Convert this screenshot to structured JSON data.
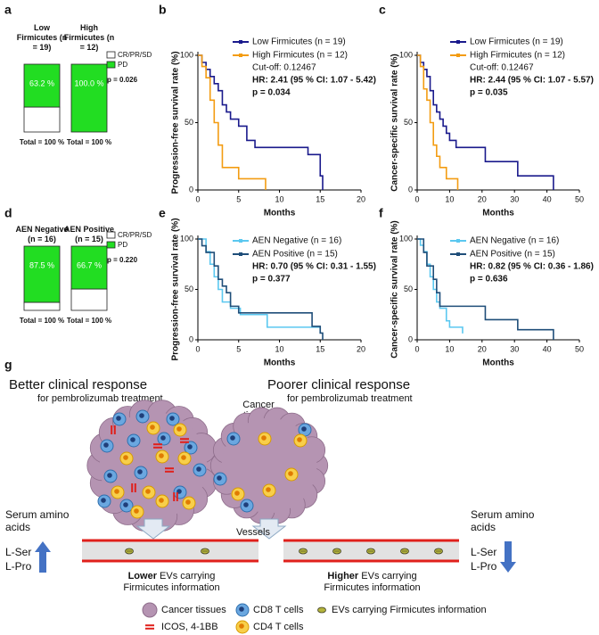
{
  "chart_data": [
    {
      "panel": "a",
      "type": "bar",
      "stacked": true,
      "categories": [
        "Low Firmicutes (n = 19)",
        "High Firmicutes (n = 12)"
      ],
      "series": [
        {
          "name": "CR/PR/SD",
          "color": "#ffffff",
          "values": [
            36.8,
            0
          ]
        },
        {
          "name": "PD",
          "color": "#22dd22",
          "values": [
            63.2,
            100.0
          ],
          "value_labels": [
            "63.2 %",
            "100.0 %"
          ]
        }
      ],
      "annotations": [
        "p = 0.026"
      ],
      "totals": [
        "Total = 100 %",
        "Total = 100 %"
      ]
    },
    {
      "panel": "b",
      "type": "line",
      "step": true,
      "xlabel": "Months",
      "ylabel": "Progression-free survival rate (%)",
      "xlim": [
        0,
        20
      ],
      "xticks": [
        0,
        5,
        10,
        15,
        20
      ],
      "ylim": [
        0,
        100
      ],
      "yticks": [
        0,
        50,
        100
      ],
      "series": [
        {
          "name": "Low Firmicutes (n = 19)",
          "color": "#1a1a8c",
          "x": [
            0,
            0.5,
            1,
            1.5,
            2,
            2.5,
            3,
            3.5,
            4,
            5,
            6,
            7,
            13.5,
            15,
            15.3
          ],
          "values": [
            100,
            94.7,
            89.5,
            84.2,
            78.9,
            73.7,
            63.2,
            57.9,
            52.6,
            47.4,
            36.8,
            31.6,
            26.3,
            10.5,
            0
          ]
        },
        {
          "name": "High Firmicutes (n = 12)",
          "color": "#f39c12",
          "x": [
            0,
            0.5,
            1,
            1.5,
            2,
            2.5,
            3,
            5,
            8.3
          ],
          "values": [
            100,
            91.7,
            83.3,
            66.7,
            50,
            33.3,
            16.7,
            8.3,
            0
          ]
        }
      ],
      "annotations": [
        "Cut-off: 0.12467",
        "HR: 2.41 (95 % CI: 1.07 - 5.42)",
        "p = 0.034"
      ]
    },
    {
      "panel": "c",
      "type": "line",
      "step": true,
      "xlabel": "Months",
      "ylabel": "Cancer-specific survival rate (%)",
      "xlim": [
        0,
        50
      ],
      "xticks": [
        0,
        10,
        20,
        30,
        40,
        50
      ],
      "ylim": [
        0,
        100
      ],
      "yticks": [
        0,
        50,
        100
      ],
      "series": [
        {
          "name": "Low Firmicutes (n = 19)",
          "color": "#1a1a8c",
          "x": [
            0,
            1,
            2,
            3,
            4,
            5,
            6,
            7,
            8,
            9,
            10,
            12,
            21,
            31,
            42
          ],
          "values": [
            100,
            94.7,
            89.5,
            84.2,
            73.7,
            63.2,
            57.9,
            52.6,
            47.4,
            42.1,
            36.8,
            31.6,
            21.1,
            10.5,
            0
          ]
        },
        {
          "name": "High Firmicutes (n = 12)",
          "color": "#f39c12",
          "x": [
            0,
            1,
            2,
            3,
            4,
            5,
            6,
            7,
            9,
            12.5
          ],
          "values": [
            100,
            91.7,
            75,
            66.7,
            50,
            33.3,
            25,
            16.7,
            8.3,
            0
          ]
        }
      ],
      "annotations": [
        "Cut-off: 0.12467",
        "HR: 2.44 (95 % CI: 1.07 - 5.57)",
        "p = 0.035"
      ]
    },
    {
      "panel": "d",
      "type": "bar",
      "stacked": true,
      "categories": [
        "AEN Negative (n = 16)",
        "AEN Positive (n = 15)"
      ],
      "series": [
        {
          "name": "CR/PR/SD",
          "color": "#ffffff",
          "values": [
            12.5,
            33.3
          ]
        },
        {
          "name": "PD",
          "color": "#22dd22",
          "values": [
            87.5,
            66.7
          ],
          "value_labels": [
            "87.5 %",
            "66.7 %"
          ]
        }
      ],
      "annotations": [
        "p = 0.220"
      ],
      "totals": [
        "Total = 100 %",
        "Total = 100 %"
      ]
    },
    {
      "panel": "e",
      "type": "line",
      "step": true,
      "xlabel": "Months",
      "ylabel": "Progression-free survival rate (%)",
      "xlim": [
        0,
        20
      ],
      "xticks": [
        0,
        5,
        10,
        15,
        20
      ],
      "ylim": [
        0,
        100
      ],
      "yticks": [
        0,
        50,
        100
      ],
      "series": [
        {
          "name": "AEN Negative (n = 16)",
          "color": "#5bc8f0",
          "x": [
            0,
            1,
            1.5,
            2,
            2.5,
            3,
            4,
            5.2,
            8.5,
            15
          ],
          "values": [
            100,
            87.5,
            75,
            62.5,
            50,
            37.5,
            31.3,
            25,
            12.5,
            6.3
          ]
        },
        {
          "name": "AEN Positive (n = 15)",
          "color": "#1f4e79",
          "x": [
            0,
            0.5,
            1,
            2,
            2.5,
            3,
            3.5,
            4,
            5,
            14,
            15,
            15.3
          ],
          "values": [
            100,
            93.3,
            86.7,
            73.3,
            60,
            53.3,
            46.7,
            33.3,
            26.7,
            13.3,
            6.7,
            0
          ]
        }
      ],
      "annotations": [
        "HR: 0.70 (95 % CI: 0.31 - 1.55)",
        "p = 0.377"
      ]
    },
    {
      "panel": "f",
      "type": "line",
      "step": true,
      "xlabel": "Months",
      "ylabel": "Cancer-specific survival rate (%)",
      "xlim": [
        0,
        50
      ],
      "xticks": [
        0,
        10,
        20,
        30,
        40,
        50
      ],
      "ylim": [
        0,
        100
      ],
      "yticks": [
        0,
        50,
        100
      ],
      "series": [
        {
          "name": "AEN Negative (n = 16)",
          "color": "#5bc8f0",
          "x": [
            0,
            1,
            2,
            3,
            4,
            5,
            6,
            7,
            9,
            10,
            14
          ],
          "values": [
            100,
            93.8,
            87.5,
            75,
            62.5,
            50,
            37.5,
            31.3,
            18.8,
            12.5,
            6.3
          ]
        },
        {
          "name": "AEN Positive (n = 15)",
          "color": "#1f4e79",
          "x": [
            0,
            2,
            3,
            5,
            6,
            7,
            21,
            31,
            42
          ],
          "values": [
            100,
            86.7,
            73.3,
            60,
            46.7,
            33.3,
            20,
            10,
            0
          ]
        }
      ],
      "annotations": [
        "HR: 0.82 (95 % CI: 0.36 - 1.86)",
        "p = 0.636"
      ]
    }
  ],
  "diagram": {
    "panel": "g",
    "left": {
      "title": "Better clinical response",
      "subtitle": "for pembrolizumab treatment",
      "serum": "Serum amino acids",
      "amino": [
        "L-Ser",
        "L-Pro"
      ],
      "evs_emphasis": "Lower",
      "evs_text": "EVs carrying Firmicutes information"
    },
    "right": {
      "title": "Poorer clinical response",
      "subtitle": "for pembrolizumab treatment",
      "serum": "Serum amino acids",
      "amino": [
        "L-Ser",
        "L-Pro"
      ],
      "evs_emphasis": "Higher",
      "evs_text": "EVs carrying Firmicutes information"
    },
    "cancer_label": "Cancer tissues",
    "vessels_label": "Vessels",
    "legend": [
      "Cancer tissues",
      "CD8 T cells",
      "EVs carrying Firmicutes information",
      "ICOS, 4-1BB",
      "CD4 T cells"
    ]
  }
}
